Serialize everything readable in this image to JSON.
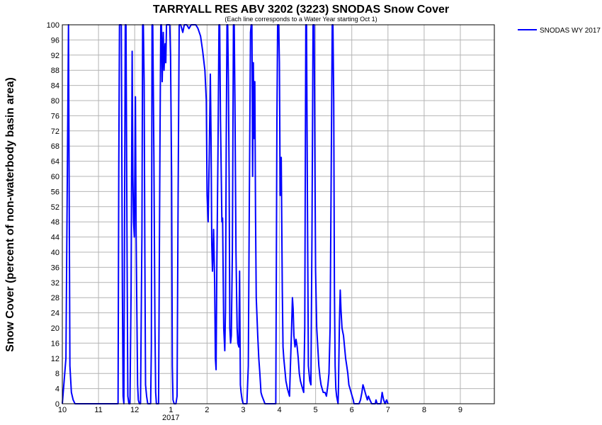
{
  "chart_data": {
    "type": "line",
    "title": "TARRYALL RES ABV 3202 (3223) SNODAS Snow Cover",
    "subtitle": "(Each line corresponds to a Water Year starting Oct 1)",
    "ylabel": "Snow Cover (percent of non-waterbody basin area)",
    "xlabel": "",
    "ylim": [
      0,
      100
    ],
    "xlim": [
      10.0,
      9.94
    ],
    "y_ticks": [
      "0",
      "4",
      "8",
      "12",
      "16",
      "20",
      "24",
      "28",
      "32",
      "36",
      "40",
      "44",
      "48",
      "52",
      "56",
      "60",
      "64",
      "68",
      "72",
      "76",
      "80",
      "84",
      "88",
      "92",
      "96",
      "100"
    ],
    "x_ticks": [
      {
        "value": 10,
        "label": "10"
      },
      {
        "value": 11,
        "label": "11"
      },
      {
        "value": 12,
        "label": "12"
      },
      {
        "value": 13,
        "label": "1"
      },
      {
        "value": 14,
        "label": "2"
      },
      {
        "value": 15,
        "label": "3"
      },
      {
        "value": 16,
        "label": "4"
      },
      {
        "value": 17,
        "label": "5"
      },
      {
        "value": 18,
        "label": "6"
      },
      {
        "value": 19,
        "label": "7"
      },
      {
        "value": 20,
        "label": "8"
      },
      {
        "value": 21,
        "label": "9"
      }
    ],
    "year_label": {
      "value": 13,
      "label": "2017"
    },
    "grid": true,
    "legend_position": "top-right",
    "series": [
      {
        "name": "SNODAS WY 2017",
        "color": "#0000ff",
        "points": [
          [
            10.0,
            0
          ],
          [
            10.1,
            12
          ],
          [
            10.17,
            100
          ],
          [
            10.18,
            77
          ],
          [
            10.21,
            10
          ],
          [
            10.25,
            3
          ],
          [
            10.3,
            1
          ],
          [
            10.35,
            0
          ],
          [
            10.8,
            0
          ],
          [
            11.0,
            0
          ],
          [
            11.5,
            0
          ],
          [
            11.54,
            0
          ],
          [
            11.56,
            62
          ],
          [
            11.58,
            100
          ],
          [
            11.6,
            100
          ],
          [
            11.63,
            100
          ],
          [
            11.66,
            30
          ],
          [
            11.68,
            2
          ],
          [
            11.7,
            0
          ],
          [
            11.74,
            100
          ],
          [
            11.76,
            100
          ],
          [
            11.79,
            40
          ],
          [
            11.81,
            2
          ],
          [
            11.84,
            0
          ],
          [
            11.87,
            0
          ],
          [
            11.9,
            30
          ],
          [
            11.93,
            93
          ],
          [
            11.95,
            60
          ],
          [
            11.97,
            48
          ],
          [
            11.99,
            44
          ],
          [
            12.02,
            81
          ],
          [
            12.04,
            45
          ],
          [
            12.06,
            25
          ],
          [
            12.08,
            5
          ],
          [
            12.1,
            1
          ],
          [
            12.13,
            0
          ],
          [
            12.16,
            0
          ],
          [
            12.2,
            45
          ],
          [
            12.22,
            100
          ],
          [
            12.24,
            100
          ],
          [
            12.26,
            85
          ],
          [
            12.28,
            40
          ],
          [
            12.3,
            5
          ],
          [
            12.33,
            2
          ],
          [
            12.36,
            0
          ],
          [
            12.44,
            0
          ],
          [
            12.46,
            15
          ],
          [
            12.48,
            100
          ],
          [
            12.5,
            100
          ],
          [
            12.53,
            65
          ],
          [
            12.56,
            20
          ],
          [
            12.58,
            3
          ],
          [
            12.6,
            0
          ],
          [
            12.66,
            0
          ],
          [
            12.7,
            70
          ],
          [
            12.72,
            100
          ],
          [
            12.74,
            100
          ],
          [
            12.76,
            85
          ],
          [
            12.79,
            98
          ],
          [
            12.81,
            88
          ],
          [
            12.84,
            95
          ],
          [
            12.86,
            90
          ],
          [
            12.88,
            100
          ],
          [
            12.92,
            100
          ],
          [
            12.97,
            100
          ],
          [
            12.99,
            92
          ],
          [
            13.02,
            60
          ],
          [
            13.04,
            10
          ],
          [
            13.06,
            1
          ],
          [
            13.09,
            0
          ],
          [
            13.14,
            0
          ],
          [
            13.17,
            2
          ],
          [
            13.2,
            55
          ],
          [
            13.23,
            100
          ],
          [
            13.27,
            100
          ],
          [
            13.33,
            98
          ],
          [
            13.37,
            100
          ],
          [
            13.44,
            100
          ],
          [
            13.5,
            99
          ],
          [
            13.56,
            100
          ],
          [
            13.62,
            100
          ],
          [
            13.69,
            100
          ],
          [
            13.75,
            99
          ],
          [
            13.82,
            97
          ],
          [
            13.88,
            93
          ],
          [
            13.94,
            88
          ],
          [
            13.98,
            80
          ],
          [
            14.0,
            55
          ],
          [
            14.03,
            48
          ],
          [
            14.06,
            65
          ],
          [
            14.09,
            87
          ],
          [
            14.11,
            70
          ],
          [
            14.13,
            42
          ],
          [
            14.15,
            35
          ],
          [
            14.18,
            46
          ],
          [
            14.21,
            32
          ],
          [
            14.23,
            12
          ],
          [
            14.25,
            9
          ],
          [
            14.27,
            35
          ],
          [
            14.3,
            65
          ],
          [
            14.33,
            100
          ],
          [
            14.35,
            100
          ],
          [
            14.37,
            75
          ],
          [
            14.39,
            62
          ],
          [
            14.41,
            48
          ],
          [
            14.43,
            49
          ],
          [
            14.46,
            20
          ],
          [
            14.49,
            14
          ],
          [
            14.51,
            25
          ],
          [
            14.53,
            68
          ],
          [
            14.55,
            100
          ],
          [
            14.57,
            100
          ],
          [
            14.59,
            85
          ],
          [
            14.61,
            60
          ],
          [
            14.63,
            20
          ],
          [
            14.65,
            16
          ],
          [
            14.67,
            18
          ],
          [
            14.7,
            40
          ],
          [
            14.73,
            100
          ],
          [
            14.75,
            100
          ],
          [
            14.77,
            80
          ],
          [
            14.8,
            40
          ],
          [
            14.83,
            20
          ],
          [
            14.85,
            16
          ],
          [
            14.88,
            15
          ],
          [
            14.9,
            35
          ],
          [
            14.92,
            5
          ],
          [
            14.94,
            3
          ],
          [
            14.97,
            1
          ],
          [
            15.0,
            0
          ],
          [
            15.07,
            0
          ],
          [
            15.1,
            0
          ],
          [
            15.14,
            10
          ],
          [
            15.17,
            55
          ],
          [
            15.2,
            98
          ],
          [
            15.22,
            100
          ],
          [
            15.24,
            100
          ],
          [
            15.26,
            60
          ],
          [
            15.28,
            90
          ],
          [
            15.3,
            70
          ],
          [
            15.32,
            85
          ],
          [
            15.34,
            50
          ],
          [
            15.36,
            28
          ],
          [
            15.4,
            18
          ],
          [
            15.43,
            12
          ],
          [
            15.46,
            8
          ],
          [
            15.49,
            3
          ],
          [
            15.52,
            2
          ],
          [
            15.56,
            1
          ],
          [
            15.6,
            0
          ],
          [
            15.9,
            0
          ],
          [
            15.93,
            75
          ],
          [
            15.95,
            100
          ],
          [
            15.98,
            100
          ],
          [
            16.0,
            90
          ],
          [
            16.02,
            55
          ],
          [
            16.05,
            65
          ],
          [
            16.08,
            30
          ],
          [
            16.1,
            15
          ],
          [
            16.12,
            12
          ],
          [
            16.14,
            10
          ],
          [
            16.16,
            8
          ],
          [
            16.18,
            6
          ],
          [
            16.2,
            5
          ],
          [
            16.22,
            4
          ],
          [
            16.25,
            3
          ],
          [
            16.28,
            2
          ],
          [
            16.3,
            9
          ],
          [
            16.33,
            18
          ],
          [
            16.36,
            28
          ],
          [
            16.38,
            25
          ],
          [
            16.4,
            18
          ],
          [
            16.43,
            15
          ],
          [
            16.46,
            17
          ],
          [
            16.49,
            15
          ],
          [
            16.52,
            12
          ],
          [
            16.55,
            8
          ],
          [
            16.58,
            6
          ],
          [
            16.61,
            5
          ],
          [
            16.64,
            4
          ],
          [
            16.67,
            3
          ],
          [
            16.7,
            20
          ],
          [
            16.73,
            100
          ],
          [
            16.75,
            100
          ],
          [
            16.77,
            60
          ],
          [
            16.8,
            10
          ],
          [
            16.82,
            8
          ],
          [
            16.84,
            6
          ],
          [
            16.87,
            5
          ],
          [
            16.9,
            45
          ],
          [
            16.93,
            100
          ],
          [
            16.96,
            100
          ],
          [
            16.98,
            65
          ],
          [
            17.0,
            35
          ],
          [
            17.03,
            20
          ],
          [
            17.06,
            15
          ],
          [
            17.09,
            10
          ],
          [
            17.12,
            7
          ],
          [
            17.15,
            5
          ],
          [
            17.18,
            4
          ],
          [
            17.21,
            3
          ],
          [
            17.26,
            3
          ],
          [
            17.3,
            2
          ],
          [
            17.34,
            5
          ],
          [
            17.37,
            8
          ],
          [
            17.4,
            20
          ],
          [
            17.43,
            60
          ],
          [
            17.46,
            100
          ],
          [
            17.48,
            100
          ],
          [
            17.5,
            80
          ],
          [
            17.52,
            30
          ],
          [
            17.54,
            10
          ],
          [
            17.56,
            4
          ],
          [
            17.58,
            2
          ],
          [
            17.6,
            1
          ],
          [
            17.62,
            0
          ],
          [
            17.63,
            3
          ],
          [
            17.66,
            22
          ],
          [
            17.68,
            30
          ],
          [
            17.7,
            25
          ],
          [
            17.73,
            20
          ],
          [
            17.75,
            19
          ],
          [
            17.77,
            18
          ],
          [
            17.8,
            15
          ],
          [
            17.83,
            12
          ],
          [
            17.86,
            10
          ],
          [
            17.89,
            8
          ],
          [
            17.92,
            5
          ],
          [
            17.95,
            4
          ],
          [
            17.98,
            3
          ],
          [
            18.01,
            2
          ],
          [
            18.04,
            1
          ],
          [
            18.06,
            0
          ],
          [
            18.2,
            0
          ],
          [
            18.24,
            1
          ],
          [
            18.28,
            3
          ],
          [
            18.31,
            5
          ],
          [
            18.34,
            4
          ],
          [
            18.37,
            3
          ],
          [
            18.4,
            2
          ],
          [
            18.43,
            1
          ],
          [
            18.46,
            2
          ],
          [
            18.5,
            1
          ],
          [
            18.55,
            0
          ],
          [
            18.6,
            0
          ],
          [
            18.65,
            0
          ],
          [
            18.67,
            1
          ],
          [
            18.7,
            0
          ],
          [
            18.8,
            0
          ],
          [
            18.84,
            3
          ],
          [
            18.86,
            2
          ],
          [
            18.88,
            1
          ],
          [
            18.92,
            0
          ],
          [
            18.96,
            1
          ],
          [
            19.0,
            0
          ]
        ]
      }
    ]
  }
}
